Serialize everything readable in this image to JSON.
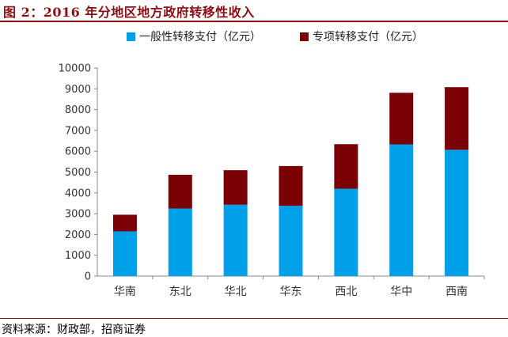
{
  "figure": {
    "title": "图 2：2016 年分地区地方政府转移性收入",
    "source": "资料来源：财政部，招商证券"
  },
  "colors": {
    "accent": "#8b0f14",
    "series_general": "#00a0e9",
    "series_special": "#7a0006"
  },
  "chart_data": {
    "type": "bar",
    "stacked": true,
    "title": "",
    "xlabel": "",
    "ylabel": "",
    "ylim": [
      0,
      10000
    ],
    "yticks": [
      0,
      1000,
      2000,
      3000,
      4000,
      5000,
      6000,
      7000,
      8000,
      9000,
      10000
    ],
    "categories": [
      "华南",
      "东北",
      "华北",
      "华东",
      "西北",
      "华中",
      "西南"
    ],
    "series": [
      {
        "name": "一般性转移支付（亿元）",
        "color": "#00a0e9",
        "values": [
          2150,
          3250,
          3430,
          3380,
          4200,
          6330,
          6070
        ]
      },
      {
        "name": "专项转移支付（亿元）",
        "color": "#7a0006",
        "values": [
          800,
          1620,
          1660,
          1910,
          2140,
          2480,
          3010
        ]
      }
    ],
    "legend_position": "top",
    "grid": false
  }
}
